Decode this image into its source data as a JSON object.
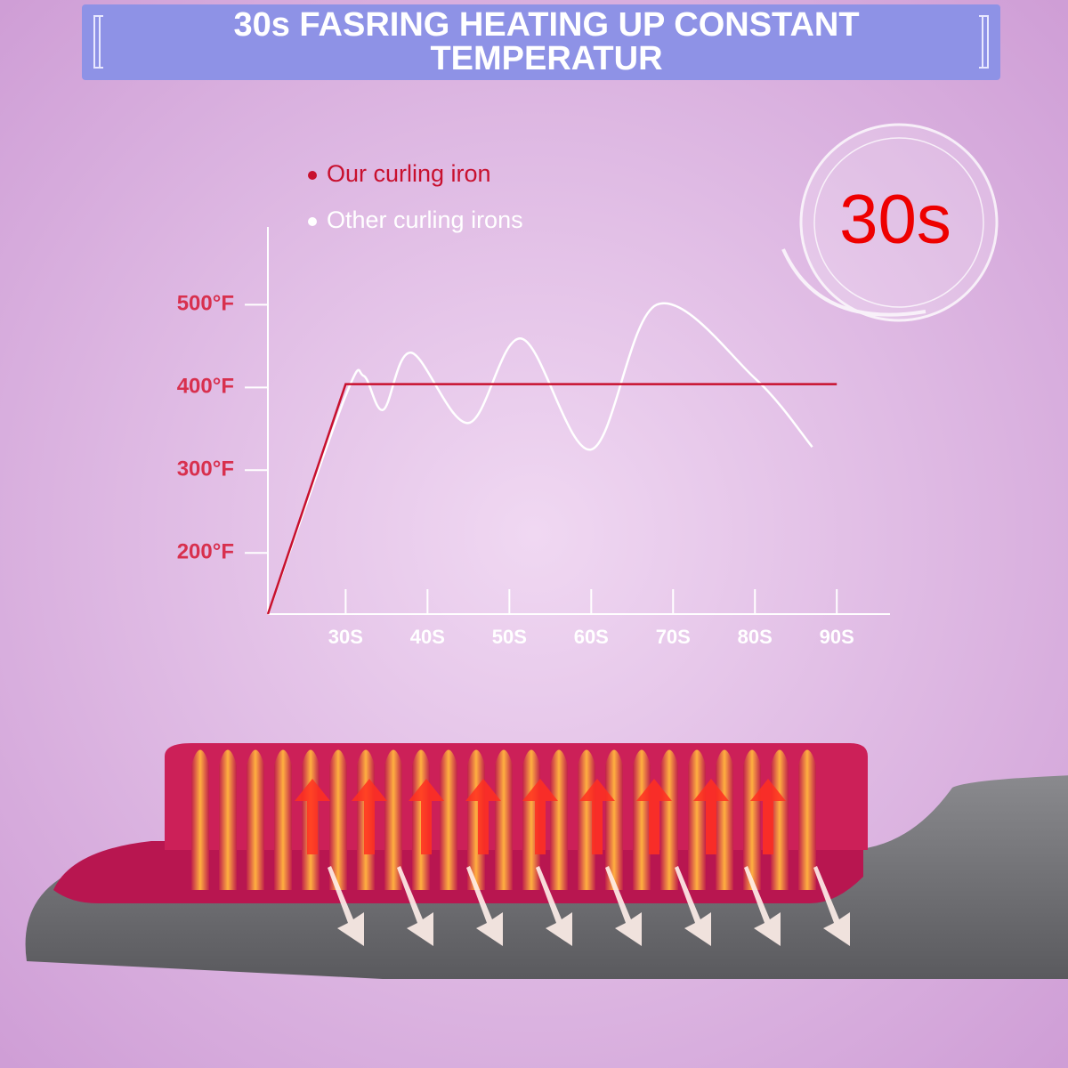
{
  "chart_data": {
    "type": "line",
    "title": [
      "30s FASRING HEATING UP CONSTANT",
      "TEMPERATUR"
    ],
    "badge": "30s",
    "xlim": [
      20.5,
      96.5
    ],
    "ylim": [
      126,
      594
    ],
    "xticks": [
      {
        "value": 30,
        "label": "30S"
      },
      {
        "value": 40,
        "label": "40S"
      },
      {
        "value": 50,
        "label": "50S"
      },
      {
        "value": 60,
        "label": "60S"
      },
      {
        "value": 70,
        "label": "70S"
      },
      {
        "value": 80,
        "label": "80S"
      },
      {
        "value": 90,
        "label": "90S"
      }
    ],
    "yticks": [
      {
        "value": 200,
        "label": "200°F"
      },
      {
        "value": 300,
        "label": "300°F"
      },
      {
        "value": 400,
        "label": "400°F"
      },
      {
        "value": 500,
        "label": "500°F"
      }
    ],
    "series": [
      {
        "name": "Our curling iron",
        "color": "#c8102e",
        "smooth": false,
        "x": [
          20.5,
          30,
          90
        ],
        "values": [
          126,
          404,
          404
        ]
      },
      {
        "name": "Other curling irons",
        "color": "#ffffff",
        "smooth": true,
        "x": [
          20.5,
          30,
          32.2,
          34.6,
          38,
          45,
          51.5,
          60,
          68,
          80,
          87
        ],
        "values": [
          126,
          390,
          414,
          373,
          442,
          357,
          459,
          325,
          500,
          411,
          328
        ]
      }
    ]
  }
}
